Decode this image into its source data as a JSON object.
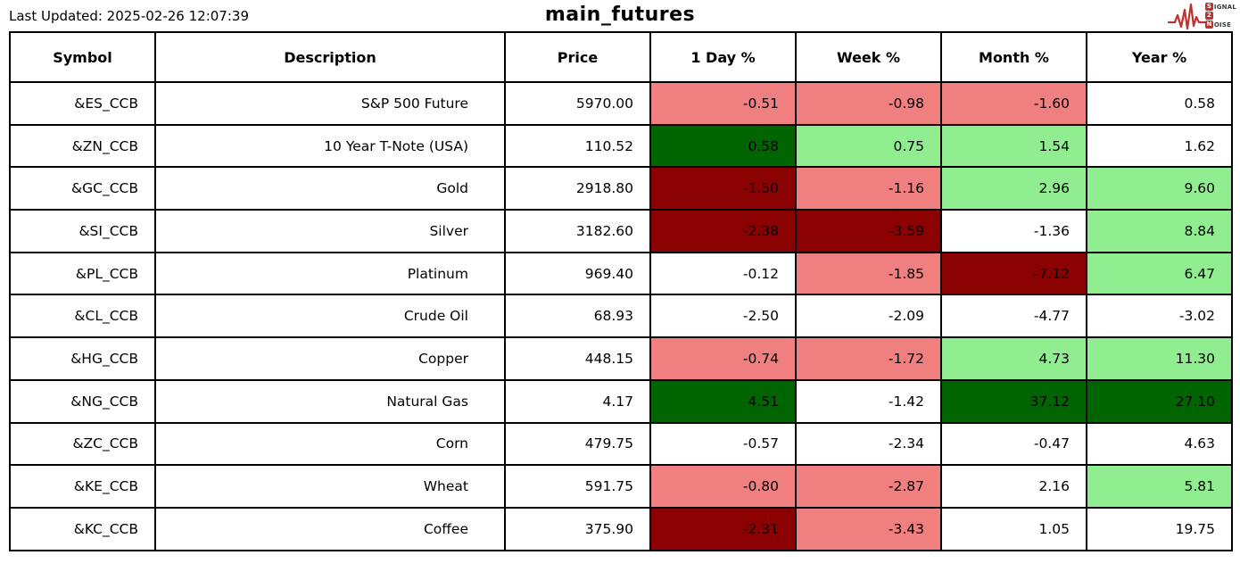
{
  "meta": {
    "last_updated": "Last Updated: 2025-02-26 12:07:39",
    "title": "main_futures"
  },
  "logo": {
    "line1_box": "S",
    "line1_rest": "IGNAL",
    "line2_box": "2",
    "line3_box": "N",
    "line3_rest": "OISE",
    "accent_color": "#c0302c"
  },
  "colors": {
    "white": "#ffffff",
    "light_red": "#f08080",
    "dark_red": "#8b0000",
    "light_green": "#90ee90",
    "dark_green": "#006400"
  },
  "table": {
    "columns": [
      "Symbol",
      "Description",
      "Price",
      "1 Day %",
      "Week %",
      "Month %",
      "Year %"
    ],
    "rows": [
      {
        "symbol": "&ES_CCB",
        "description": "S&P 500 Future",
        "price": "5970.00",
        "changes": [
          {
            "value": "-0.51",
            "color": "light_red"
          },
          {
            "value": "-0.98",
            "color": "light_red"
          },
          {
            "value": "-1.60",
            "color": "light_red"
          },
          {
            "value": "0.58",
            "color": "white"
          }
        ]
      },
      {
        "symbol": "&ZN_CCB",
        "description": "10 Year T-Note (USA)",
        "price": "110.52",
        "changes": [
          {
            "value": "0.58",
            "color": "dark_green"
          },
          {
            "value": "0.75",
            "color": "light_green"
          },
          {
            "value": "1.54",
            "color": "light_green"
          },
          {
            "value": "1.62",
            "color": "white"
          }
        ]
      },
      {
        "symbol": "&GC_CCB",
        "description": "Gold",
        "price": "2918.80",
        "changes": [
          {
            "value": "-1.50",
            "color": "dark_red"
          },
          {
            "value": "-1.16",
            "color": "light_red"
          },
          {
            "value": "2.96",
            "color": "light_green"
          },
          {
            "value": "9.60",
            "color": "light_green"
          }
        ]
      },
      {
        "symbol": "&SI_CCB",
        "description": "Silver",
        "price": "3182.60",
        "changes": [
          {
            "value": "-2.38",
            "color": "dark_red"
          },
          {
            "value": "-3.59",
            "color": "dark_red"
          },
          {
            "value": "-1.36",
            "color": "white"
          },
          {
            "value": "8.84",
            "color": "light_green"
          }
        ]
      },
      {
        "symbol": "&PL_CCB",
        "description": "Platinum",
        "price": "969.40",
        "changes": [
          {
            "value": "-0.12",
            "color": "white"
          },
          {
            "value": "-1.85",
            "color": "light_red"
          },
          {
            "value": "-7.12",
            "color": "dark_red"
          },
          {
            "value": "6.47",
            "color": "light_green"
          }
        ]
      },
      {
        "symbol": "&CL_CCB",
        "description": "Crude Oil",
        "price": "68.93",
        "changes": [
          {
            "value": "-2.50",
            "color": "white"
          },
          {
            "value": "-2.09",
            "color": "white"
          },
          {
            "value": "-4.77",
            "color": "white"
          },
          {
            "value": "-3.02",
            "color": "white"
          }
        ]
      },
      {
        "symbol": "&HG_CCB",
        "description": "Copper",
        "price": "448.15",
        "changes": [
          {
            "value": "-0.74",
            "color": "light_red"
          },
          {
            "value": "-1.72",
            "color": "light_red"
          },
          {
            "value": "4.73",
            "color": "light_green"
          },
          {
            "value": "11.30",
            "color": "light_green"
          }
        ]
      },
      {
        "symbol": "&NG_CCB",
        "description": "Natural Gas",
        "price": "4.17",
        "changes": [
          {
            "value": "4.51",
            "color": "dark_green"
          },
          {
            "value": "-1.42",
            "color": "white"
          },
          {
            "value": "37.12",
            "color": "dark_green"
          },
          {
            "value": "27.10",
            "color": "dark_green"
          }
        ]
      },
      {
        "symbol": "&ZC_CCB",
        "description": "Corn",
        "price": "479.75",
        "changes": [
          {
            "value": "-0.57",
            "color": "white"
          },
          {
            "value": "-2.34",
            "color": "white"
          },
          {
            "value": "-0.47",
            "color": "white"
          },
          {
            "value": "4.63",
            "color": "white"
          }
        ]
      },
      {
        "symbol": "&KE_CCB",
        "description": "Wheat",
        "price": "591.75",
        "changes": [
          {
            "value": "-0.80",
            "color": "light_red"
          },
          {
            "value": "-2.87",
            "color": "light_red"
          },
          {
            "value": "2.16",
            "color": "white"
          },
          {
            "value": "5.81",
            "color": "light_green"
          }
        ]
      },
      {
        "symbol": "&KC_CCB",
        "description": "Coffee",
        "price": "375.90",
        "changes": [
          {
            "value": "-2.31",
            "color": "dark_red"
          },
          {
            "value": "-3.43",
            "color": "light_red"
          },
          {
            "value": "1.05",
            "color": "white"
          },
          {
            "value": "19.75",
            "color": "white"
          }
        ]
      }
    ]
  }
}
